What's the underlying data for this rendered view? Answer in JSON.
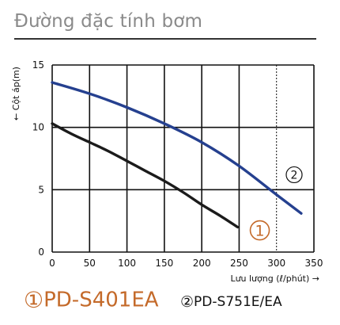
{
  "header": {
    "title": "Đường đặc tính bơm"
  },
  "legend": {
    "item1": {
      "marker": "1",
      "label": "PD-S401EA"
    },
    "item2": {
      "marker": "2",
      "label": "PD-S751E/EA"
    }
  },
  "colors": {
    "series1": "#1b1b1b",
    "series2": "#25408f",
    "marker1": "#c46a2a",
    "grid": "#111111"
  },
  "chart_data": {
    "type": "line",
    "xlabel": "Lưu lượng (ℓ/phút) →",
    "ylabel": "← Cột áp(m)",
    "xlim": [
      0,
      350
    ],
    "ylim": [
      0,
      15
    ],
    "xticks": [
      "0",
      "50",
      "100",
      "150",
      "200",
      "250",
      "300",
      "350"
    ],
    "yticks": [
      "0",
      "5",
      "10",
      "15"
    ],
    "grid": true,
    "series": [
      {
        "name": "PD-S401EA",
        "marker": "1",
        "x": [
          0,
          25,
          50,
          75,
          100,
          125,
          150,
          175,
          200,
          225,
          248
        ],
        "y": [
          10.3,
          9.5,
          8.8,
          8.1,
          7.3,
          6.5,
          5.7,
          4.8,
          3.8,
          2.9,
          2.0
        ]
      },
      {
        "name": "PD-S751E/EA",
        "marker": "2",
        "x": [
          0,
          50,
          100,
          150,
          200,
          250,
          300,
          333
        ],
        "y": [
          13.6,
          12.7,
          11.6,
          10.3,
          8.8,
          6.9,
          4.6,
          3.1
        ]
      }
    ]
  }
}
